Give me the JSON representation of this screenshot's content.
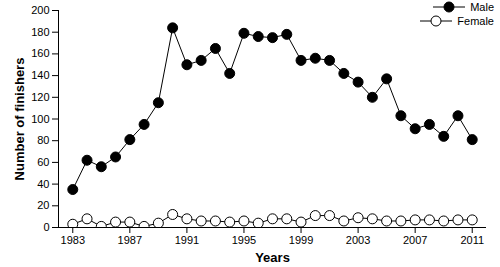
{
  "chart_data": {
    "type": "line",
    "x_label": "Years",
    "y_label": "Number of finishers",
    "x": [
      1983,
      1984,
      1985,
      1986,
      1987,
      1988,
      1989,
      1990,
      1991,
      1992,
      1993,
      1994,
      1995,
      1996,
      1997,
      1998,
      1999,
      2000,
      2001,
      2002,
      2003,
      2004,
      2005,
      2006,
      2007,
      2008,
      2009,
      2010,
      2011
    ],
    "series": [
      {
        "name": "Male",
        "color": "#000000",
        "marker": "circle",
        "values": [
          35,
          62,
          56,
          65,
          81,
          95,
          115,
          184,
          150,
          154,
          165,
          142,
          179,
          176,
          175,
          178,
          154,
          156,
          154,
          142,
          134,
          120,
          137,
          103,
          91,
          95,
          84,
          103,
          81
        ]
      },
      {
        "name": "Female",
        "color": "#000000",
        "marker": "open_circle",
        "values": [
          3,
          8,
          1,
          5,
          5,
          1,
          4,
          12,
          8,
          6,
          6,
          5,
          6,
          4,
          8,
          8,
          5,
          11,
          11,
          6,
          9,
          8,
          6,
          6,
          7,
          7,
          6,
          7,
          7
        ]
      }
    ],
    "xlim": [
      1982,
      2012
    ],
    "xticks": [
      1983,
      1987,
      1991,
      1995,
      1999,
      2003,
      2007,
      2011
    ],
    "ylim": [
      0,
      200
    ],
    "yticks": [
      0,
      20,
      40,
      60,
      80,
      100,
      120,
      140,
      160,
      180,
      200
    ],
    "legend": "top-right",
    "grid": false
  }
}
